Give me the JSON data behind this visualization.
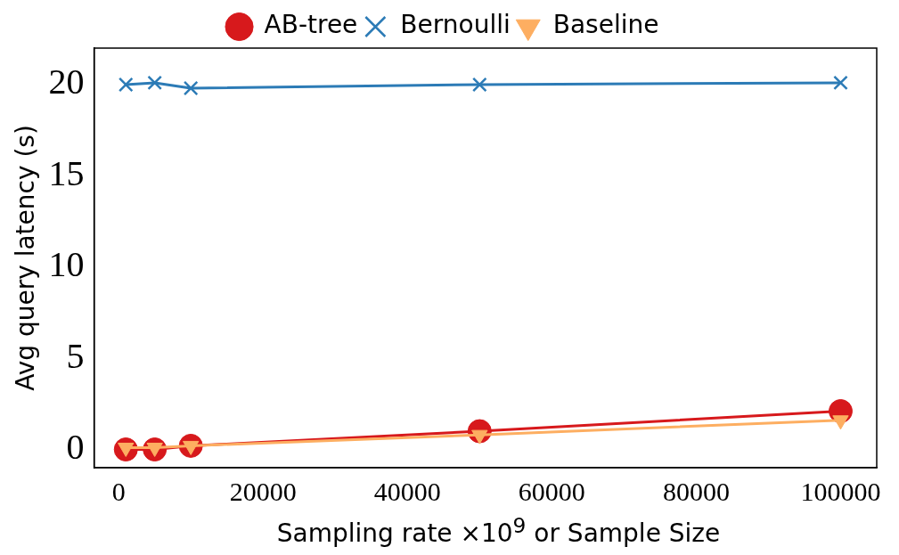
{
  "chart_data": {
    "type": "line",
    "xlabel": "Sampling rate ×10$^{9}$ or Sample Size",
    "ylabel": "Avg query latency (s)",
    "x": [
      1000,
      5000,
      10000,
      50000,
      100000
    ],
    "series": [
      {
        "name": "AB-tree",
        "color": "#d7191c",
        "marker": "circle",
        "values": [
          0,
          0,
          0.2,
          1.0,
          2.1
        ]
      },
      {
        "name": "Bernoulli",
        "color": "#2c7bb6",
        "marker": "cross",
        "values": [
          20,
          20.1,
          19.8,
          20,
          20.1
        ]
      },
      {
        "name": "Baseline",
        "color": "#fdae61",
        "marker": "triangle",
        "values": [
          0.1,
          0.1,
          0.2,
          0.8,
          1.6
        ]
      }
    ],
    "xlim": [
      -3400,
      105000
    ],
    "xticks": [
      0,
      20000,
      40000,
      60000,
      80000,
      100000
    ],
    "ylim": [
      -1,
      22
    ],
    "yticks": [
      0,
      5,
      10,
      15,
      20
    ],
    "grid": false,
    "legend": "top",
    "line_style": "solid"
  }
}
